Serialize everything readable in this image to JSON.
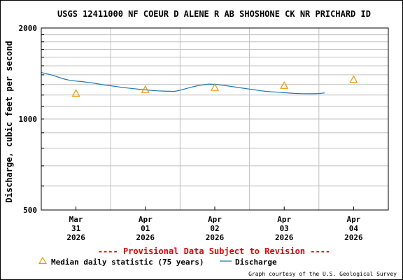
{
  "chart_data": {
    "type": "line",
    "title": "USGS 12411000 NF COEUR D ALENE R AB SHOSHONE CK NR PRICHARD ID",
    "ylabel": "Discharge, cubic feet per second",
    "xlabel": "",
    "y_scale": "log",
    "ylim": [
      500,
      2000
    ],
    "y_ticks": [
      {
        "value": 500,
        "label": "500"
      },
      {
        "value": 1000,
        "label": "1000"
      },
      {
        "value": 2000,
        "label": "2000"
      }
    ],
    "xlim": [
      "2026-03-31T00:00",
      "2026-04-05T00:00"
    ],
    "x_ticks": [
      {
        "date": "2026-03-31T12:00",
        "month": "Mar",
        "day": "31",
        "year": "2026"
      },
      {
        "date": "2026-04-01T12:00",
        "month": "Apr",
        "day": "01",
        "year": "2026"
      },
      {
        "date": "2026-04-02T12:00",
        "month": "Apr",
        "day": "02",
        "year": "2026"
      },
      {
        "date": "2026-04-03T12:00",
        "month": "Apr",
        "day": "03",
        "year": "2026"
      },
      {
        "date": "2026-04-04T12:00",
        "month": "Apr",
        "day": "04",
        "year": "2026"
      }
    ],
    "grid": true,
    "series": [
      {
        "name": "Discharge",
        "kind": "line",
        "color": "#1f77b4",
        "points": [
          [
            "2026-03-31T00:00",
            1425
          ],
          [
            "2026-03-31T02:00",
            1410
          ],
          [
            "2026-03-31T04:00",
            1395
          ],
          [
            "2026-03-31T06:00",
            1375
          ],
          [
            "2026-03-31T08:00",
            1355
          ],
          [
            "2026-03-31T10:00",
            1342
          ],
          [
            "2026-03-31T12:00",
            1335
          ],
          [
            "2026-03-31T14:00",
            1330
          ],
          [
            "2026-03-31T16:00",
            1322
          ],
          [
            "2026-03-31T18:00",
            1315
          ],
          [
            "2026-03-31T20:00",
            1305
          ],
          [
            "2026-03-31T22:00",
            1295
          ],
          [
            "2026-04-01T00:00",
            1288
          ],
          [
            "2026-04-01T02:00",
            1280
          ],
          [
            "2026-04-01T04:00",
            1272
          ],
          [
            "2026-04-01T06:00",
            1266
          ],
          [
            "2026-04-01T08:00",
            1260
          ],
          [
            "2026-04-01T10:00",
            1254
          ],
          [
            "2026-04-01T12:00",
            1248
          ],
          [
            "2026-04-01T14:00",
            1244
          ],
          [
            "2026-04-01T16:00",
            1240
          ],
          [
            "2026-04-01T18:00",
            1237
          ],
          [
            "2026-04-01T20:00",
            1235
          ],
          [
            "2026-04-01T22:00",
            1234
          ],
          [
            "2026-04-02T00:00",
            1245
          ],
          [
            "2026-04-02T02:00",
            1260
          ],
          [
            "2026-04-02T04:00",
            1275
          ],
          [
            "2026-04-02T06:00",
            1288
          ],
          [
            "2026-04-02T08:00",
            1298
          ],
          [
            "2026-04-02T10:00",
            1305
          ],
          [
            "2026-04-02T12:00",
            1302
          ],
          [
            "2026-04-02T14:00",
            1296
          ],
          [
            "2026-04-02T16:00",
            1288
          ],
          [
            "2026-04-02T18:00",
            1280
          ],
          [
            "2026-04-02T20:00",
            1272
          ],
          [
            "2026-04-02T22:00",
            1264
          ],
          [
            "2026-04-03T00:00",
            1256
          ],
          [
            "2026-04-03T02:00",
            1248
          ],
          [
            "2026-04-03T04:00",
            1240
          ],
          [
            "2026-04-03T06:00",
            1234
          ],
          [
            "2026-04-03T08:00",
            1230
          ],
          [
            "2026-04-03T10:00",
            1226
          ],
          [
            "2026-04-03T12:00",
            1222
          ],
          [
            "2026-04-03T14:00",
            1218
          ],
          [
            "2026-04-03T16:00",
            1215
          ],
          [
            "2026-04-03T18:00",
            1213
          ],
          [
            "2026-04-03T20:00",
            1212
          ],
          [
            "2026-04-03T22:00",
            1212
          ],
          [
            "2026-04-04T00:00",
            1214
          ],
          [
            "2026-04-04T02:00",
            1220
          ]
        ]
      },
      {
        "name": "Median daily statistic (75 years)",
        "kind": "marker",
        "marker": "triangle",
        "color": "#e69a00",
        "points": [
          [
            "2026-03-31T12:00",
            1215
          ],
          [
            "2026-04-01T12:00",
            1250
          ],
          [
            "2026-04-02T12:00",
            1270
          ],
          [
            "2026-04-03T12:00",
            1290
          ],
          [
            "2026-04-04T12:00",
            1350
          ]
        ]
      }
    ],
    "annotations": {
      "provisional": "---- Provisional Data Subject to Revision ----",
      "credit": "Graph courtesy of the U.S. Geological Survey"
    },
    "legend": {
      "position": "bottom",
      "items": [
        {
          "label": "Median daily statistic (75 years)",
          "marker": "triangle",
          "color": "#e69a00"
        },
        {
          "label": "Discharge",
          "marker": "line",
          "color": "#1f77b4"
        }
      ]
    },
    "colors": {
      "grid": "#c0c0c0",
      "axis": "#000000",
      "provisional": "#e00000"
    }
  }
}
